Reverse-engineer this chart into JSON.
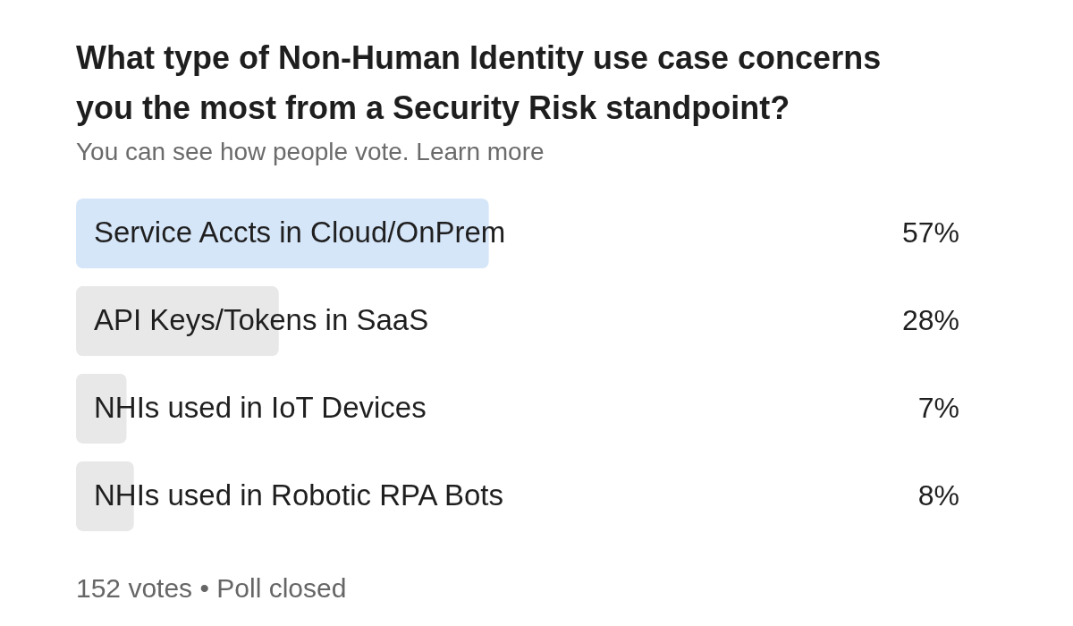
{
  "chart_data": {
    "type": "bar",
    "orientation": "horizontal",
    "title": "What type of Non-Human Identity use case concerns you the most from a Security Risk standpoint?",
    "subtitle": "You can see how people vote. Learn more",
    "categories": [
      "Service Accts in Cloud/OnPrem",
      "API Keys/Tokens in SaaS",
      "NHIs used in IoT Devices",
      "NHIs used in Robotic RPA Bots"
    ],
    "values": [
      57,
      28,
      7,
      8
    ],
    "colors": [
      "#d6e6f9",
      "#e8e8e8",
      "#e8e8e8",
      "#e8e8e8"
    ],
    "value_labels": [
      "57%",
      "28%",
      "7%",
      "8%"
    ],
    "annotations": [
      "152 votes • Poll closed"
    ]
  }
}
